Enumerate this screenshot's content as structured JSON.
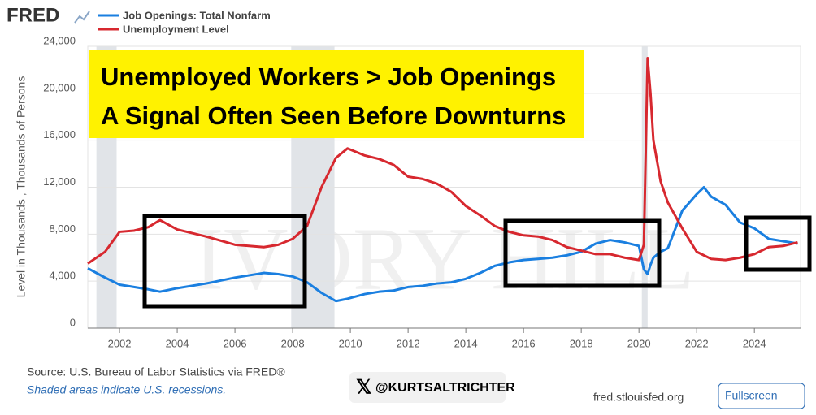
{
  "header": {
    "logo": "FRED"
  },
  "chart_data": {
    "type": "line",
    "title_lines": [
      "Unemployed Workers > Job Openings",
      "A Signal Often Seen Before Downturns"
    ],
    "y_label": "Level in Thousands , Thousands of Persons",
    "watermark": "IVORY HILL",
    "x": [
      2000.9,
      2001.5,
      2002,
      2002.5,
      2003,
      2003.4,
      2004,
      2005,
      2006,
      2007,
      2007.5,
      2008,
      2008.5,
      2009,
      2009.5,
      2009.9,
      2010.5,
      2011,
      2011.5,
      2012,
      2012.5,
      2013,
      2013.5,
      2014,
      2014.5,
      2015,
      2015.5,
      2016,
      2016.5,
      2017,
      2017.5,
      2018,
      2018.5,
      2019,
      2019.5,
      2020,
      2020.17,
      2020.3,
      2020.4,
      2020.5,
      2020.75,
      2021,
      2021.5,
      2022,
      2022.25,
      2022.5,
      2023,
      2023.5,
      2024,
      2024.5,
      2025,
      2025.5
    ],
    "series": [
      {
        "name": "Job Openings: Total Nonfarm",
        "color": "#1a7fe0",
        "values": [
          5100,
          4300,
          3700,
          3500,
          3300,
          3100,
          3400,
          3800,
          4300,
          4700,
          4600,
          4400,
          3900,
          3000,
          2300,
          2500,
          2900,
          3100,
          3200,
          3500,
          3600,
          3800,
          3900,
          4200,
          4700,
          5300,
          5600,
          5800,
          5900,
          6000,
          6200,
          6500,
          7200,
          7500,
          7300,
          7000,
          5000,
          4600,
          5400,
          6000,
          6500,
          6800,
          10000,
          11400,
          12000,
          11200,
          10500,
          9000,
          8500,
          7600,
          7400,
          7200
        ]
      },
      {
        "name": "Unemployment Level",
        "color": "#d7282f",
        "values": [
          5500,
          6500,
          8200,
          8300,
          8600,
          9200,
          8400,
          7800,
          7100,
          6900,
          7100,
          7600,
          8700,
          12000,
          14500,
          15300,
          14700,
          14400,
          13900,
          12900,
          12700,
          12300,
          11600,
          10400,
          9600,
          8700,
          8200,
          7900,
          7800,
          7500,
          6900,
          6600,
          6300,
          6300,
          6000,
          5800,
          7100,
          23000,
          20000,
          16000,
          12500,
          10700,
          8500,
          6500,
          6200,
          5900,
          5800,
          6000,
          6300,
          6900,
          7000,
          7300
        ]
      }
    ],
    "recessions": [
      [
        2001.2,
        2001.9
      ],
      [
        2007.95,
        2009.45
      ],
      [
        2020.1,
        2020.3
      ]
    ],
    "xlim": [
      2000.9,
      2025.6
    ],
    "ylim": [
      0,
      24000
    ],
    "xticks": [
      2002,
      2004,
      2006,
      2008,
      2010,
      2012,
      2014,
      2016,
      2018,
      2020,
      2022,
      2024
    ],
    "yticks": [
      0,
      {
        "value": 4000,
        "label": "4,000"
      },
      {
        "value": 8000,
        "label": "8,000"
      },
      {
        "value": 12000,
        "label": "12,000"
      },
      {
        "value": 16000,
        "label": "16,000"
      },
      {
        "value": 20000,
        "label": "20,000"
      },
      {
        "value": 24000,
        "label": "24,000"
      }
    ],
    "grid": true
  },
  "footer": {
    "source": "Source: U.S. Bureau of Labor Statistics via FRED®",
    "note": "Shaded areas indicate U.S. recessions.",
    "handle": "@KURTSALTRICHTER",
    "site": "fred.stlouisfed.org",
    "button": "Fullscreen"
  }
}
